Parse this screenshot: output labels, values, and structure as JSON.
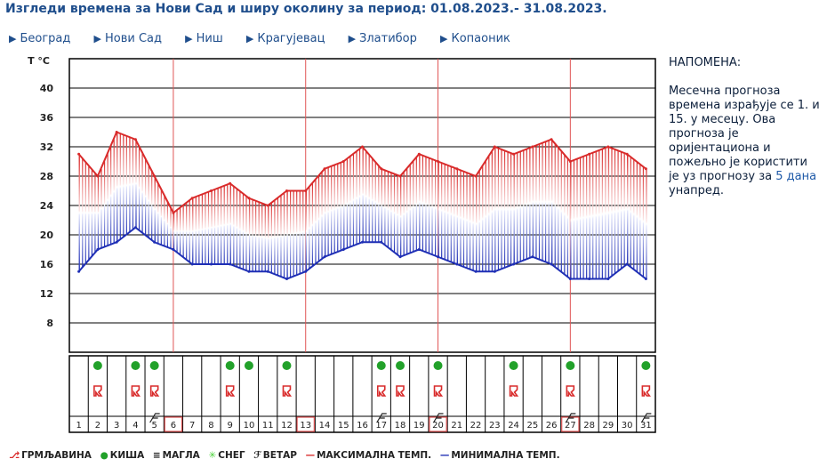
{
  "title": "Изгледи времена за Нови Сад и ширу околину за период: 01.08.2023.- 31.08.2023.",
  "nav": [
    "Београд",
    "Нови Сад",
    "Ниш",
    "Крагујевац",
    "Златибор",
    "Копаоник"
  ],
  "note": {
    "title": "НАПОМЕНА:",
    "text_before": "Месечна прогноза времена израђује се 1. и 15. у месецу. Ова прогноза је оријентациона и пожељно је користити је уз прогнозу за ",
    "link": "5 дана",
    "text_after": " унапред."
  },
  "legend": [
    {
      "icon": "thunder-icon",
      "label": "ГРМЉАВИНА",
      "color": "#d92b2b"
    },
    {
      "icon": "rain-icon",
      "label": "КИША",
      "color": "#22a12a"
    },
    {
      "icon": "fog-icon",
      "label": "МАГЛА",
      "color": "#333333"
    },
    {
      "icon": "snow-icon",
      "label": "СНЕГ",
      "color": "#4cd13b"
    },
    {
      "icon": "wind-icon",
      "label": "ВЕТАР",
      "color": "#333333"
    },
    {
      "icon": "max-line",
      "label": "МАКСИМАЛНА ТЕМП.",
      "color": "#d92b2b"
    },
    {
      "icon": "min-line",
      "label": "МИНИМАЛНА ТЕМП.",
      "color": "#1f2fb5"
    }
  ],
  "chart_data": {
    "type": "area",
    "ylabel": "T °C",
    "yticks": [
      8,
      12,
      16,
      20,
      24,
      28,
      32,
      36,
      40
    ],
    "ylim": [
      4,
      44
    ],
    "x": [
      "1",
      "2",
      "3",
      "4",
      "5",
      "6",
      "7",
      "8",
      "9",
      "10",
      "11",
      "12",
      "13",
      "14",
      "15",
      "16",
      "17",
      "18",
      "19",
      "20",
      "21",
      "22",
      "23",
      "24",
      "25",
      "26",
      "27",
      "28",
      "29",
      "30",
      "31"
    ],
    "series": [
      {
        "name": "МАКСИМАЛНА ТЕМП.",
        "color": "#d92b2b",
        "values": [
          31,
          28,
          34,
          33,
          28,
          23,
          25,
          26,
          27,
          25,
          24,
          26,
          26,
          29,
          30,
          32,
          29,
          28,
          31,
          30,
          29,
          28,
          32,
          31,
          32,
          33,
          30,
          31,
          32,
          31,
          29
        ]
      },
      {
        "name": "МИНИМАЛНА ТЕМП.",
        "color": "#1f2fb5",
        "values": [
          15,
          18,
          19,
          21,
          19,
          18,
          16,
          16,
          16,
          15,
          15,
          14,
          15,
          17,
          18,
          19,
          19,
          17,
          18,
          17,
          16,
          15,
          15,
          16,
          17,
          16,
          14,
          14,
          14,
          16,
          14
        ]
      }
    ],
    "vertical_markers": [
      6,
      13,
      20,
      27
    ],
    "weather": {
      "rain": [
        2,
        4,
        5,
        9,
        10,
        12,
        17,
        18,
        20,
        24,
        27,
        31
      ],
      "thunder": [
        2,
        4,
        5,
        9,
        12,
        17,
        18,
        20,
        24,
        27,
        31
      ],
      "wind": [
        5,
        17,
        20,
        27,
        31
      ]
    },
    "highlighted_days": [
      6,
      13,
      20,
      27
    ],
    "grid": true
  }
}
